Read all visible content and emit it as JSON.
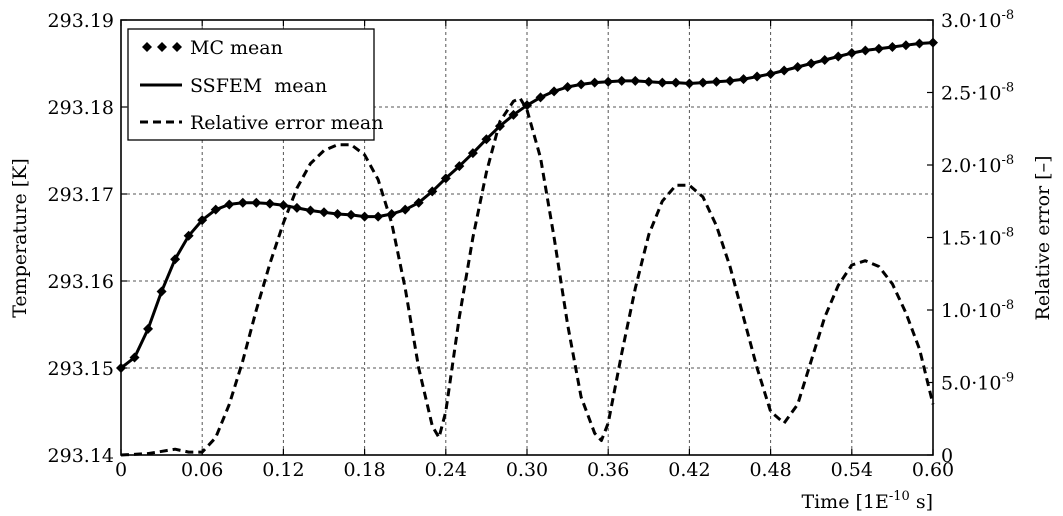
{
  "chart_data": {
    "type": "line",
    "xlabel": "Time [1E",
    "xlabel_exp": "-10",
    "xlabel_tail": " s]",
    "ylabel_left": "Temperature [K]",
    "ylabel_right": "Relative error [–]",
    "xlim": [
      0,
      0.6
    ],
    "ylim_left": [
      293.14,
      293.19
    ],
    "ylim_right": [
      0,
      3e-08
    ],
    "grid": true,
    "legend_position": "top-left",
    "x_ticks": [
      0,
      0.06,
      0.12,
      0.18,
      0.24,
      0.3,
      0.36,
      0.42,
      0.48,
      0.54,
      0.6
    ],
    "x_tick_labels": [
      "0",
      "0.06",
      "0.12",
      "0.18",
      "0.24",
      "0.30",
      "0.36",
      "0.42",
      "0.48",
      "0.54",
      "0.60"
    ],
    "y_left_ticks": [
      293.14,
      293.15,
      293.16,
      293.17,
      293.18,
      293.19
    ],
    "y_left_tick_labels": [
      "293.14",
      "293.15",
      "293.16",
      "293.17",
      "293.18",
      "293.19"
    ],
    "y_right_ticks": [
      0,
      5e-09,
      1e-08,
      1.5e-08,
      2e-08,
      2.5e-08,
      3e-08
    ],
    "y_right_tick_labels": [
      {
        "mant": "0",
        "exp": ""
      },
      {
        "mant": "5.0·10",
        "exp": "-9"
      },
      {
        "mant": "1.0·10",
        "exp": "-8"
      },
      {
        "mant": "1.5·10",
        "exp": "-8"
      },
      {
        "mant": "2.0·10",
        "exp": "-8"
      },
      {
        "mant": "2.5·10",
        "exp": "-8"
      },
      {
        "mant": "3.0·10",
        "exp": "-8"
      }
    ],
    "series": [
      {
        "name": "MC mean",
        "axis": "left",
        "style": "diamond-markers",
        "x": [
          0,
          0.01,
          0.02,
          0.03,
          0.04,
          0.05,
          0.06,
          0.07,
          0.08,
          0.09,
          0.1,
          0.11,
          0.12,
          0.13,
          0.14,
          0.15,
          0.16,
          0.17,
          0.18,
          0.19,
          0.2,
          0.21,
          0.22,
          0.23,
          0.24,
          0.25,
          0.26,
          0.27,
          0.28,
          0.29,
          0.3,
          0.31,
          0.32,
          0.33,
          0.34,
          0.35,
          0.36,
          0.37,
          0.38,
          0.39,
          0.4,
          0.41,
          0.42,
          0.43,
          0.44,
          0.45,
          0.46,
          0.47,
          0.48,
          0.49,
          0.5,
          0.51,
          0.52,
          0.53,
          0.54,
          0.55,
          0.56,
          0.57,
          0.58,
          0.59,
          0.6
        ],
        "y": [
          293.15,
          293.1512,
          293.1545,
          293.1588,
          293.1625,
          293.1652,
          293.167,
          293.1682,
          293.1688,
          293.169,
          293.169,
          293.1689,
          293.1687,
          293.1684,
          293.1681,
          293.1679,
          293.1677,
          293.1676,
          293.1674,
          293.1674,
          293.1677,
          293.1682,
          293.169,
          293.1703,
          293.1718,
          293.1732,
          293.1747,
          293.1763,
          293.1778,
          293.1791,
          293.1802,
          293.1811,
          293.1818,
          293.1823,
          293.1826,
          293.1828,
          293.1829,
          293.183,
          293.183,
          293.1829,
          293.1828,
          293.1828,
          293.1827,
          293.1828,
          293.1829,
          293.183,
          293.1832,
          293.1835,
          293.1838,
          293.1842,
          293.1846,
          293.185,
          293.1854,
          293.1858,
          293.1862,
          293.1865,
          293.1867,
          293.1869,
          293.1871,
          293.1873,
          293.1874
        ]
      },
      {
        "name": "SSFEM  mean",
        "axis": "left",
        "style": "solid",
        "x": [
          0,
          0.01,
          0.02,
          0.03,
          0.04,
          0.05,
          0.06,
          0.07,
          0.08,
          0.09,
          0.1,
          0.11,
          0.12,
          0.13,
          0.14,
          0.15,
          0.16,
          0.17,
          0.18,
          0.19,
          0.2,
          0.21,
          0.22,
          0.23,
          0.24,
          0.25,
          0.26,
          0.27,
          0.28,
          0.29,
          0.3,
          0.31,
          0.32,
          0.33,
          0.34,
          0.35,
          0.36,
          0.37,
          0.38,
          0.39,
          0.4,
          0.41,
          0.42,
          0.43,
          0.44,
          0.45,
          0.46,
          0.47,
          0.48,
          0.49,
          0.5,
          0.51,
          0.52,
          0.53,
          0.54,
          0.55,
          0.56,
          0.57,
          0.58,
          0.59,
          0.6
        ],
        "y": [
          293.15,
          293.1512,
          293.1545,
          293.1588,
          293.1625,
          293.1652,
          293.167,
          293.1682,
          293.1688,
          293.169,
          293.169,
          293.1689,
          293.1687,
          293.1684,
          293.1681,
          293.1679,
          293.1677,
          293.1676,
          293.1674,
          293.1674,
          293.1677,
          293.1682,
          293.169,
          293.1703,
          293.1718,
          293.1732,
          293.1747,
          293.1763,
          293.1778,
          293.1791,
          293.1802,
          293.1811,
          293.1818,
          293.1823,
          293.1826,
          293.1828,
          293.1829,
          293.183,
          293.183,
          293.1829,
          293.1828,
          293.1828,
          293.1827,
          293.1828,
          293.1829,
          293.183,
          293.1832,
          293.1835,
          293.1838,
          293.1842,
          293.1846,
          293.185,
          293.1854,
          293.1858,
          293.1862,
          293.1865,
          293.1867,
          293.1869,
          293.1871,
          293.1873,
          293.1874
        ]
      },
      {
        "name": "Relative error mean",
        "axis": "right",
        "style": "dashed",
        "x": [
          0,
          0.02,
          0.04,
          0.05,
          0.06,
          0.07,
          0.08,
          0.09,
          0.1,
          0.11,
          0.12,
          0.13,
          0.14,
          0.15,
          0.16,
          0.17,
          0.18,
          0.19,
          0.2,
          0.21,
          0.22,
          0.23,
          0.235,
          0.24,
          0.25,
          0.26,
          0.27,
          0.28,
          0.29,
          0.295,
          0.3,
          0.31,
          0.32,
          0.33,
          0.34,
          0.35,
          0.355,
          0.36,
          0.37,
          0.38,
          0.39,
          0.4,
          0.41,
          0.42,
          0.43,
          0.44,
          0.45,
          0.46,
          0.47,
          0.48,
          0.49,
          0.5,
          0.51,
          0.52,
          0.53,
          0.54,
          0.55,
          0.56,
          0.57,
          0.58,
          0.59,
          0.6
        ],
        "y": [
          0,
          1e-10,
          4e-10,
          2e-10,
          2e-10,
          1.2e-09,
          3.5e-09,
          6.5e-09,
          1e-08,
          1.32e-08,
          1.6e-08,
          1.84e-08,
          2.01e-08,
          2.1e-08,
          2.14e-08,
          2.14e-08,
          2.07e-08,
          1.9e-08,
          1.6e-08,
          1.15e-08,
          6e-09,
          2e-09,
          1.2e-09,
          3e-09,
          9.5e-09,
          1.5e-08,
          1.95e-08,
          2.3e-08,
          2.44e-08,
          2.46e-08,
          2.38e-08,
          2.05e-08,
          1.5e-08,
          9e-09,
          4e-09,
          1.5e-09,
          1e-09,
          2.2e-09,
          7e-09,
          1.15e-08,
          1.52e-08,
          1.75e-08,
          1.86e-08,
          1.86e-08,
          1.78e-08,
          1.58e-08,
          1.3e-08,
          9.5e-09,
          6e-09,
          3e-09,
          2.2e-09,
          3.5e-09,
          6.5e-09,
          9.5e-09,
          1.17e-08,
          1.31e-08,
          1.34e-08,
          1.3e-08,
          1.18e-08,
          9.8e-09,
          7.3e-09,
          3.5e-09
        ]
      }
    ]
  }
}
